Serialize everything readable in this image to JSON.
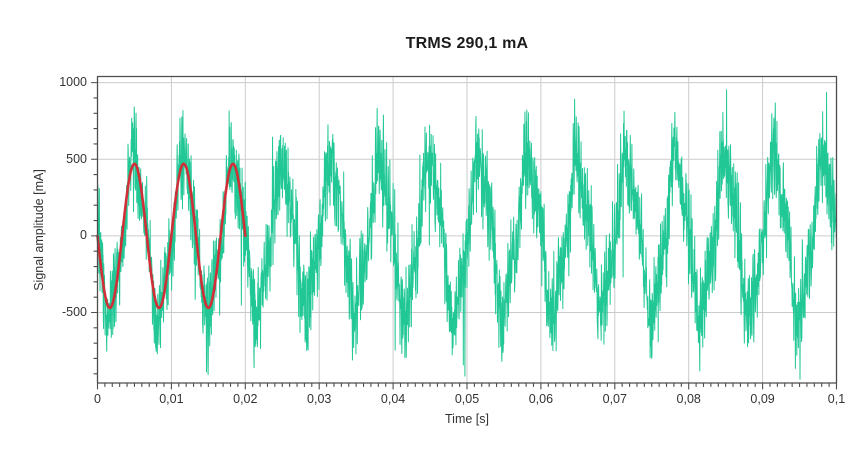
{
  "chart_data": {
    "type": "line",
    "title": "TRMS 290,1 mA",
    "xlabel": "Time [s]",
    "ylabel": "Signal amplitude [mA]",
    "xlim": [
      0,
      0.1
    ],
    "ylim": [
      -960,
      1040
    ],
    "x_major_ticks": [
      {
        "value": 0,
        "label": "0"
      },
      {
        "value": 0.01,
        "label": "0,01"
      },
      {
        "value": 0.02,
        "label": "0,02"
      },
      {
        "value": 0.03,
        "label": "0,03"
      },
      {
        "value": 0.04,
        "label": "0,04"
      },
      {
        "value": 0.05,
        "label": "0,05"
      },
      {
        "value": 0.06,
        "label": "0,06"
      },
      {
        "value": 0.07,
        "label": "0,07"
      },
      {
        "value": 0.08,
        "label": "0,08"
      },
      {
        "value": 0.09,
        "label": "0,09"
      },
      {
        "value": 0.1,
        "label": "0,1"
      }
    ],
    "x_minor_step": 0.001,
    "y_major_ticks": [
      {
        "value": 1000,
        "label": "1000"
      },
      {
        "value": 500,
        "label": "500"
      },
      {
        "value": 0,
        "label": "0"
      },
      {
        "value": -500,
        "label": "-500"
      }
    ],
    "y_minor_step": 100,
    "grid": "major-only",
    "legend": "none",
    "colors": {
      "signal_green": "#21c795",
      "fit_red": "#d12f38",
      "gridline": "#cbcbcb",
      "axis_frame": "#4d4d4d",
      "tick_text": "#333333",
      "title_text": "#1c1c1c",
      "background": "#ffffff"
    },
    "series": [
      {
        "name": "measured-current-signal",
        "type": "noisy-line",
        "color": "#21c795",
        "t_range": [
          0,
          0.1
        ],
        "fundamental_hz": 150,
        "fundamental_amplitude_mA": 470,
        "fundamental_phase": "-sin",
        "third_harmonic_mA": 80,
        "hf_ripple_mA": 110,
        "hf_ripple_hz": 4650,
        "random_noise_peak_mA": 300,
        "envelope_peak_mA": 850,
        "envelope_trough_mA": -930,
        "samples": 3200,
        "noise_seed": 20,
        "line_width": 1
      },
      {
        "name": "fundamental-sine-fit",
        "type": "sine",
        "color": "#d12f38",
        "t_range": [
          0,
          0.02
        ],
        "freq_hz": 150,
        "amplitude_mA": 470,
        "phase": "-sin",
        "cycles_shown": 3,
        "samples": 400,
        "line_width": 2.6
      }
    ]
  }
}
